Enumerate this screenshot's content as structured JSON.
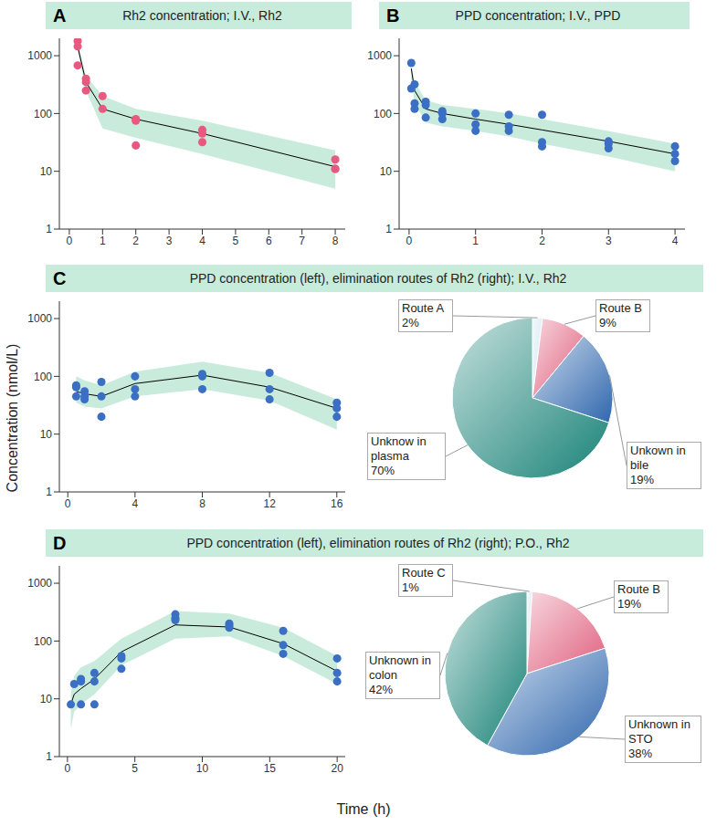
{
  "xlabel": "Time (h)",
  "ylabel": "Concentration (nmol/L)",
  "chart_data": [
    {
      "panel": "A",
      "title": "Rh2 concentration; I.V., Rh2",
      "type": "line",
      "log": "y",
      "xlim": [
        -0.3,
        8.3
      ],
      "xticks": [
        0,
        1,
        2,
        3,
        4,
        5,
        6,
        7,
        8
      ],
      "ylim": [
        1,
        2000
      ],
      "yticks": [
        1,
        10,
        100,
        1000
      ],
      "series": [
        {
          "type": "area",
          "color": "#bfe8d6",
          "x": [
            0.25,
            0.5,
            1,
            2,
            4,
            8
          ],
          "lower": [
            1200,
            250,
            55,
            38,
            20,
            5
          ],
          "upper": [
            1700,
            450,
            200,
            120,
            75,
            23
          ]
        },
        {
          "type": "line",
          "color": "#000000",
          "line_style": "solid",
          "x": [
            0.25,
            0.5,
            1,
            2,
            4,
            8
          ],
          "values": [
            1450,
            350,
            120,
            80,
            45,
            12
          ]
        },
        {
          "type": "scatter",
          "color": "#e8587f",
          "marker": "circle",
          "x": [
            0.25,
            0.25,
            0.25,
            0.5,
            0.5,
            0.5,
            1,
            1,
            2,
            2,
            2,
            4,
            4,
            4,
            8,
            8,
            8
          ],
          "values": [
            1800,
            1450,
            680,
            400,
            350,
            250,
            200,
            120,
            80,
            75,
            28,
            52,
            45,
            32,
            16,
            11,
            11
          ]
        }
      ]
    },
    {
      "panel": "B",
      "title": "PPD concentration; I.V., PPD",
      "type": "line",
      "log": "y",
      "xlim": [
        -0.15,
        4.15
      ],
      "xticks": [
        0,
        1,
        2,
        3,
        4
      ],
      "ylim": [
        1,
        2000
      ],
      "yticks": [
        1,
        10,
        100,
        1000
      ],
      "series": [
        {
          "type": "area",
          "color": "#bfe8d6",
          "x": [
            0.033,
            0.083,
            0.25,
            0.5,
            1,
            1.5,
            2,
            3,
            4
          ],
          "lower": [
            400,
            150,
            70,
            60,
            50,
            40,
            30,
            18,
            10
          ],
          "upper": [
            700,
            350,
            170,
            140,
            120,
            100,
            80,
            50,
            30
          ]
        },
        {
          "type": "line",
          "color": "#000000",
          "line_style": "solid",
          "x": [
            0.033,
            0.083,
            0.25,
            0.5,
            1,
            1.5,
            2,
            3,
            4
          ],
          "values": [
            600,
            250,
            120,
            100,
            80,
            65,
            52,
            33,
            20
          ]
        },
        {
          "type": "scatter",
          "color": "#3b6fc4",
          "marker": "circle",
          "x": [
            0.033,
            0.033,
            0.083,
            0.083,
            0.083,
            0.25,
            0.25,
            0.25,
            0.5,
            0.5,
            0.5,
            1,
            1,
            1,
            1.5,
            1.5,
            1.5,
            2,
            2,
            2,
            3,
            3,
            3,
            4,
            4,
            4
          ],
          "values": [
            750,
            270,
            320,
            150,
            120,
            160,
            140,
            85,
            110,
            100,
            80,
            100,
            65,
            50,
            95,
            60,
            50,
            95,
            32,
            27,
            33,
            30,
            25,
            27,
            20,
            15
          ]
        }
      ]
    },
    {
      "panel": "C",
      "title": "PPD concentration (left), elimination routes of Rh2 (right); I.V., Rh2",
      "type": "line",
      "log": "y",
      "xlim": [
        -0.5,
        16.5
      ],
      "xticks": [
        0,
        4,
        8,
        12,
        16
      ],
      "ylim": [
        1,
        2000
      ],
      "yticks": [
        1,
        10,
        100,
        1000
      ],
      "series": [
        {
          "type": "area",
          "color": "#bfe8d6",
          "x": [
            0.5,
            1,
            2,
            4,
            8,
            12,
            16
          ],
          "lower": [
            35,
            30,
            28,
            45,
            60,
            38,
            12
          ],
          "upper": [
            100,
            85,
            70,
            120,
            180,
            115,
            40
          ]
        },
        {
          "type": "line",
          "color": "#000000",
          "line_style": "solid",
          "x": [
            0.5,
            1,
            2,
            4,
            8,
            12,
            16
          ],
          "values": [
            55,
            50,
            45,
            75,
            105,
            65,
            28
          ]
        },
        {
          "type": "scatter",
          "color": "#3b6fc4",
          "marker": "circle",
          "x": [
            0.5,
            0.5,
            0.5,
            1,
            1,
            1,
            2,
            2,
            2,
            4,
            4,
            4,
            8,
            8,
            8,
            12,
            12,
            12,
            16,
            16,
            16
          ],
          "values": [
            70,
            65,
            45,
            55,
            45,
            40,
            80,
            45,
            20,
            100,
            60,
            45,
            110,
            100,
            60,
            115,
            60,
            40,
            35,
            28,
            20
          ]
        }
      ],
      "pie": {
        "type": "pie",
        "categories": [
          "Route A",
          "Route B",
          "Unkown in bile",
          "Unknow in plasma"
        ],
        "values": [
          2,
          9,
          19,
          70
        ],
        "value_labels": [
          "2%",
          "9%",
          "19%",
          "70%"
        ],
        "colors": [
          "#cfe6f2",
          "#e0607e",
          "#2f67ad",
          "#1a8378"
        ]
      }
    },
    {
      "panel": "D",
      "title": "PPD concentration (left), elimination routes of Rh2 (right); P.O., Rh2",
      "type": "line",
      "log": "y",
      "xlim": [
        -0.6,
        20.6
      ],
      "xticks": [
        0,
        5,
        10,
        15,
        20
      ],
      "ylim": [
        1,
        2000
      ],
      "yticks": [
        1,
        10,
        100,
        1000
      ],
      "series": [
        {
          "type": "area",
          "color": "#bfe8d6",
          "x": [
            0.25,
            0.5,
            1,
            2,
            4,
            8,
            12,
            16,
            20
          ],
          "lower": [
            3,
            6,
            8,
            12,
            38,
            110,
            120,
            55,
            18
          ],
          "upper": [
            12,
            25,
            35,
            45,
            110,
            330,
            300,
            170,
            55
          ]
        },
        {
          "type": "line",
          "color": "#000000",
          "line_style": "solid",
          "x": [
            0.25,
            0.5,
            1,
            2,
            4,
            8,
            12,
            16,
            20
          ],
          "values": [
            8,
            12,
            15,
            22,
            65,
            190,
            175,
            90,
            30
          ]
        },
        {
          "type": "scatter",
          "color": "#3b6fc4",
          "marker": "circle",
          "x": [
            0.25,
            0.5,
            1,
            1,
            1,
            2,
            2,
            2,
            4,
            4,
            4,
            8,
            8,
            8,
            12,
            12,
            12,
            16,
            16,
            16,
            20,
            20,
            20
          ],
          "values": [
            8,
            18,
            22,
            20,
            8,
            28,
            20,
            8,
            55,
            50,
            33,
            290,
            250,
            230,
            200,
            185,
            170,
            150,
            85,
            60,
            50,
            28,
            20
          ]
        }
      ],
      "pie": {
        "type": "pie",
        "categories": [
          "Route C",
          "Route B",
          "Unknown in STO",
          "Unknown in colon"
        ],
        "values": [
          1,
          19,
          38,
          42
        ],
        "value_labels": [
          "1%",
          "19%",
          "38%",
          "42%"
        ],
        "colors": [
          "#cfe6f2",
          "#e0607e",
          "#2f67ad",
          "#1a8378"
        ]
      }
    }
  ]
}
